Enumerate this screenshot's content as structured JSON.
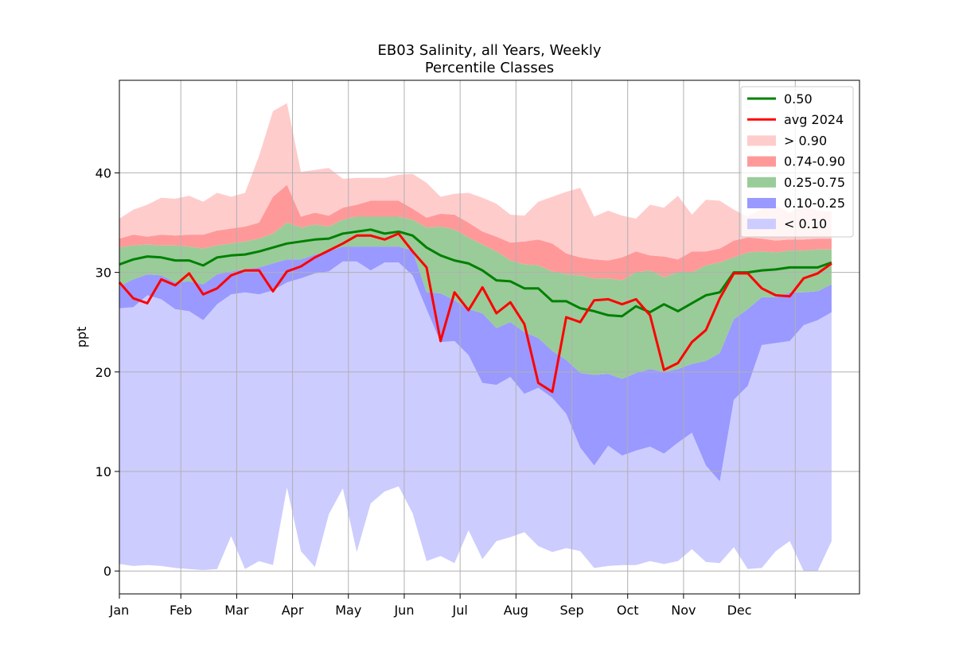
{
  "chart_data": {
    "type": "area",
    "title": "EB03 Salinity, all Years, Weekly",
    "subtitle": "Percentile Classes",
    "xlabel": "",
    "ylabel": "ppt",
    "grid": true,
    "legend_placement": "top-right",
    "xlim": [
      0,
      53
    ],
    "ylim": [
      -2.3,
      49.3
    ],
    "yticks": [
      0,
      10,
      20,
      30,
      40
    ],
    "xtick_labels": [
      "Jan",
      "Feb",
      "Mar",
      "Apr",
      "May",
      "Jun",
      "Jul",
      "Aug",
      "Sep",
      "Oct",
      "Nov",
      "Dec",
      ""
    ],
    "xticks": [
      0,
      4.4,
      8.4,
      12.4,
      16.4,
      20.4,
      24.4,
      28.4,
      32.4,
      36.4,
      40.4,
      44.4,
      48.4
    ],
    "x": [
      0,
      1,
      2,
      3,
      4,
      5,
      6,
      7,
      8,
      9,
      10,
      11,
      12,
      13,
      14,
      15,
      16,
      17,
      18,
      19,
      20,
      21,
      22,
      23,
      24,
      25,
      26,
      27,
      28,
      29,
      30,
      31,
      32,
      33,
      34,
      35,
      36,
      37,
      38,
      39,
      40,
      41,
      42,
      43,
      44,
      45,
      46,
      47,
      48,
      49,
      50,
      51
    ],
    "bands": [
      {
        "name": "< 0.10",
        "color": "#ccccff",
        "lower": [
          0.7,
          0.5,
          0.6,
          0.5,
          0.3,
          0.2,
          0.1,
          0.2,
          3.5,
          0.2,
          1.0,
          0.6,
          8.4,
          2.0,
          0.4,
          5.7,
          8.3,
          1.9,
          6.8,
          8.0,
          8.5,
          5.8,
          1.0,
          1.5,
          0.8,
          4.1,
          1.2,
          3.0,
          3.4,
          3.9,
          2.5,
          1.9,
          2.3,
          2.0,
          0.3,
          0.5,
          0.6,
          0.6,
          1.0,
          0.7,
          1.0,
          2.2,
          0.9,
          0.8,
          2.4,
          0.2,
          0.3,
          2.0,
          3.0,
          0.0,
          0.0,
          3.0
        ],
        "upper": [
          26.4,
          26.5,
          27.7,
          27.3,
          26.3,
          26.1,
          25.2,
          26.8,
          27.8,
          28.0,
          27.8,
          28.2,
          29.0,
          29.4,
          29.9,
          30.1,
          31.1,
          31.1,
          30.2,
          31.0,
          31.0,
          29.7,
          26.3,
          23.0,
          23.1,
          21.7,
          18.9,
          18.7,
          19.5,
          17.8,
          18.4,
          17.4,
          15.8,
          12.4,
          10.6,
          12.6,
          11.6,
          12.1,
          12.5,
          11.8,
          12.9,
          13.9,
          10.6,
          9.0,
          17.2,
          18.6,
          22.7,
          22.9,
          23.1,
          24.7,
          25.2,
          26.0
        ]
      },
      {
        "name": "0.10-0.25",
        "color": "#9999ff",
        "lower": [
          26.4,
          26.5,
          27.7,
          27.3,
          26.3,
          26.1,
          25.2,
          26.8,
          27.8,
          28.0,
          27.8,
          28.2,
          29.0,
          29.4,
          29.9,
          30.1,
          31.1,
          31.1,
          30.2,
          31.0,
          31.0,
          29.7,
          26.3,
          23.0,
          23.1,
          21.7,
          18.9,
          18.7,
          19.5,
          17.8,
          18.4,
          17.4,
          15.8,
          12.4,
          10.6,
          12.6,
          11.6,
          12.1,
          12.5,
          11.8,
          12.9,
          13.9,
          10.6,
          9.0,
          17.2,
          18.6,
          22.7,
          22.9,
          23.1,
          24.7,
          25.2,
          26.0
        ],
        "upper": [
          28.6,
          29.3,
          29.8,
          29.7,
          29.0,
          29.1,
          28.8,
          29.8,
          30.1,
          30.3,
          30.5,
          30.9,
          31.3,
          31.3,
          31.8,
          32.1,
          32.6,
          32.6,
          32.6,
          32.6,
          32.6,
          32.2,
          28.0,
          27.9,
          27.2,
          26.3,
          25.9,
          24.4,
          25.0,
          24.0,
          23.4,
          22.1,
          21.2,
          19.9,
          19.7,
          19.8,
          19.3,
          19.9,
          20.3,
          20.0,
          20.3,
          20.8,
          21.1,
          21.9,
          25.3,
          26.3,
          27.5,
          27.5,
          28.0,
          28.0,
          28.1,
          28.8
        ]
      },
      {
        "name": "0.25-0.75",
        "color": "#99cc99",
        "lower": [
          28.6,
          29.3,
          29.8,
          29.7,
          29.0,
          29.1,
          28.8,
          29.8,
          30.1,
          30.3,
          30.5,
          30.9,
          31.3,
          31.3,
          31.8,
          32.1,
          32.6,
          32.6,
          32.6,
          32.6,
          32.6,
          32.2,
          28.0,
          27.9,
          27.2,
          26.3,
          25.9,
          24.4,
          25.0,
          24.0,
          23.4,
          22.1,
          21.2,
          19.9,
          19.7,
          19.8,
          19.3,
          19.9,
          20.3,
          20.0,
          20.3,
          20.8,
          21.1,
          21.9,
          25.3,
          26.3,
          27.5,
          27.5,
          28.0,
          28.0,
          28.1,
          28.8
        ],
        "upper": [
          32.5,
          32.7,
          32.8,
          32.7,
          32.7,
          32.6,
          32.4,
          32.7,
          32.9,
          33.1,
          33.4,
          33.9,
          35.0,
          34.5,
          34.8,
          34.6,
          35.3,
          35.6,
          35.6,
          35.6,
          35.6,
          35.3,
          34.5,
          34.6,
          34.3,
          33.5,
          32.8,
          32.1,
          31.2,
          30.8,
          30.7,
          30.1,
          29.8,
          29.7,
          29.4,
          29.4,
          29.2,
          30.0,
          30.2,
          29.5,
          30.0,
          30.0,
          30.7,
          31.0,
          31.5,
          32.0,
          32.1,
          32.0,
          32.2,
          32.2,
          32.3,
          32.3
        ]
      },
      {
        "name": "0.74-0.90",
        "color": "#ff9999",
        "lower": [
          32.5,
          32.7,
          32.8,
          32.7,
          32.7,
          32.6,
          32.4,
          32.7,
          32.9,
          33.1,
          33.4,
          33.9,
          35.0,
          34.5,
          34.8,
          34.6,
          35.3,
          35.6,
          35.6,
          35.6,
          35.6,
          35.3,
          34.5,
          34.6,
          34.3,
          33.5,
          32.8,
          32.1,
          31.2,
          30.8,
          30.7,
          30.1,
          29.8,
          29.7,
          29.4,
          29.4,
          29.2,
          30.0,
          30.2,
          29.5,
          30.0,
          30.0,
          30.7,
          31.0,
          31.5,
          32.0,
          32.1,
          32.0,
          32.2,
          32.2,
          32.3,
          32.3
        ],
        "upper": [
          33.4,
          33.8,
          33.6,
          33.8,
          33.7,
          33.8,
          33.8,
          34.2,
          34.4,
          34.6,
          35.0,
          37.6,
          38.8,
          35.6,
          36.0,
          35.7,
          36.5,
          36.8,
          37.2,
          37.2,
          37.2,
          36.4,
          35.5,
          35.9,
          35.8,
          35.0,
          34.1,
          33.6,
          33.0,
          33.1,
          33.3,
          32.9,
          31.9,
          31.5,
          31.3,
          31.2,
          31.5,
          32.1,
          31.7,
          31.6,
          31.3,
          32.1,
          32.1,
          32.4,
          33.2,
          33.5,
          33.4,
          33.2,
          33.3,
          33.3,
          33.4,
          33.4
        ]
      },
      {
        "name": "> 0.90",
        "color": "#ffcccc",
        "lower": [
          33.4,
          33.8,
          33.6,
          33.8,
          33.7,
          33.8,
          33.8,
          34.2,
          34.4,
          34.6,
          35.0,
          37.6,
          38.8,
          35.6,
          36.0,
          35.7,
          36.5,
          36.8,
          37.2,
          37.2,
          37.2,
          36.4,
          35.5,
          35.9,
          35.8,
          35.0,
          34.1,
          33.6,
          33.0,
          33.1,
          33.3,
          32.9,
          31.9,
          31.5,
          31.3,
          31.2,
          31.5,
          32.1,
          31.7,
          31.6,
          31.3,
          32.1,
          32.1,
          32.4,
          33.2,
          33.5,
          33.4,
          33.2,
          33.3,
          33.3,
          33.4,
          33.4
        ],
        "upper": [
          35.4,
          36.3,
          36.8,
          37.5,
          37.4,
          37.7,
          37.1,
          38.0,
          37.6,
          38.0,
          41.7,
          46.2,
          47.0,
          40.1,
          40.3,
          40.5,
          39.4,
          39.5,
          39.5,
          39.5,
          39.8,
          39.9,
          39.0,
          37.6,
          37.9,
          38.0,
          37.5,
          36.9,
          35.8,
          35.7,
          37.1,
          37.6,
          38.1,
          38.5,
          35.6,
          36.2,
          35.7,
          35.4,
          36.8,
          36.5,
          37.7,
          35.8,
          37.3,
          37.2,
          36.3,
          35.6,
          36.4,
          36.7,
          36.0,
          36.8,
          36.2,
          36.1
        ]
      }
    ],
    "series": [
      {
        "name": "0.50",
        "color": "#008000",
        "values": [
          30.8,
          31.3,
          31.6,
          31.5,
          31.2,
          31.2,
          30.7,
          31.5,
          31.7,
          31.8,
          32.1,
          32.5,
          32.9,
          33.1,
          33.3,
          33.4,
          33.9,
          34.1,
          34.3,
          33.9,
          34.1,
          33.7,
          32.5,
          31.7,
          31.2,
          30.9,
          30.2,
          29.2,
          29.1,
          28.4,
          28.4,
          27.1,
          27.1,
          26.4,
          26.1,
          25.7,
          25.6,
          26.6,
          26.0,
          26.8,
          26.1,
          26.9,
          27.7,
          28.0,
          30.0,
          30.0,
          30.2,
          30.3,
          30.5,
          30.5,
          30.5,
          31.0
        ]
      },
      {
        "name": "avg 2024",
        "color": "#ff0000",
        "values": [
          29.0,
          27.4,
          26.9,
          29.3,
          28.7,
          29.9,
          27.8,
          28.4,
          29.7,
          30.2,
          30.2,
          28.1,
          30.1,
          30.6,
          31.5,
          32.2,
          32.9,
          33.7,
          33.7,
          33.3,
          33.9,
          32.1,
          30.5,
          23.1,
          28.0,
          26.2,
          28.5,
          25.9,
          27.0,
          24.8,
          18.9,
          18.0,
          25.5,
          25.0,
          27.2,
          27.3,
          26.8,
          27.3,
          25.7,
          20.2,
          20.9,
          23.0,
          24.2,
          27.4,
          29.9,
          29.9,
          28.4,
          27.7,
          27.6,
          29.4,
          29.9,
          30.9
        ]
      }
    ],
    "legend": [
      "0.50",
      "avg 2024",
      "> 0.90",
      "0.74-0.90",
      "0.25-0.75",
      "0.10-0.25",
      "< 0.10"
    ]
  }
}
